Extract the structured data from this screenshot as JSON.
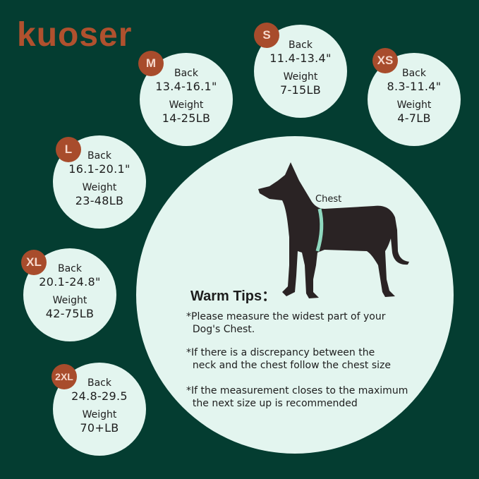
{
  "brand": {
    "logo": "kuoser"
  },
  "colors": {
    "background": "#043d31",
    "circle": "#e3f5ef",
    "badge": "#a84c2c",
    "dog": "#2a2324",
    "tape": "#8fd8bf"
  },
  "sizes": [
    {
      "size": "M",
      "back_label": "Back",
      "back": "13.4-16.1\"",
      "weight_label": "Weight",
      "weight": "14-25LB"
    },
    {
      "size": "S",
      "back_label": "Back",
      "back": "11.4-13.4\"",
      "weight_label": "Weight",
      "weight": "7-15LB"
    },
    {
      "size": "XS",
      "back_label": "Back",
      "back": "8.3-11.4\"",
      "weight_label": "Weight",
      "weight": "4-7LB"
    },
    {
      "size": "L",
      "back_label": "Back",
      "back": "16.1-20.1\"",
      "weight_label": "Weight",
      "weight": "23-48LB"
    },
    {
      "size": "XL",
      "back_label": "Back",
      "back": "20.1-24.8\"",
      "weight_label": "Weight",
      "weight": "42-75LB"
    },
    {
      "size": "2XL",
      "back_label": "Back",
      "back": "24.8-29.5",
      "weight_label": "Weight",
      "weight": "70+LB"
    }
  ],
  "diagram": {
    "chest_label": "Chest"
  },
  "tips": {
    "title": "Warm Tips：",
    "items": [
      "*Please measure the widest part of your\n  Dog's Chest.",
      "*If there is a discrepancy between the\n  neck and the chest follow the chest size",
      "*If the measurement closes to the maximum\n  the next size up is recommended"
    ]
  }
}
